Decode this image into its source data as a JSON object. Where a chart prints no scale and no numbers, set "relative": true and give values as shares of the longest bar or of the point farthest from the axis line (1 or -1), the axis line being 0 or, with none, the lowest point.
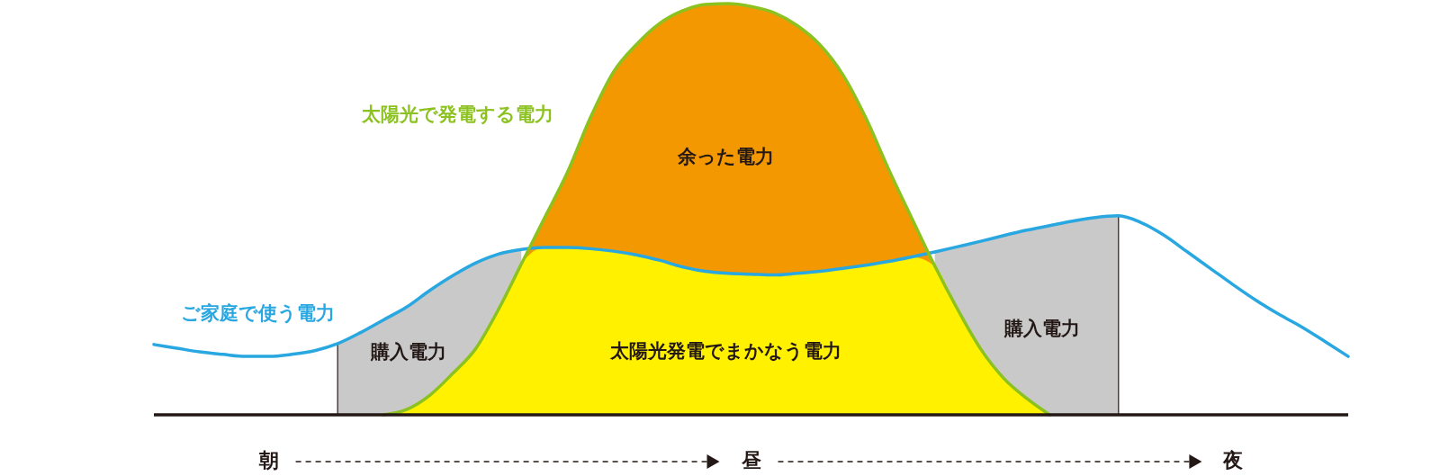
{
  "chart_data": {
    "type": "area",
    "relative": true,
    "legend": false,
    "categories": [
      null,
      null,
      null,
      null,
      null,
      "朝",
      null,
      null,
      null,
      null,
      null,
      null,
      null,
      null,
      null,
      null,
      null,
      null,
      null,
      null,
      null,
      null,
      null,
      null,
      null,
      null,
      "昼",
      null,
      null,
      null,
      null,
      null,
      null,
      null,
      null,
      null,
      null,
      null,
      null,
      null,
      null,
      null,
      null,
      null,
      null,
      null,
      null,
      "夜",
      null,
      null,
      null,
      null,
      null
    ],
    "annotations": [
      "余った電力",
      "太陽光発電でまかなう電力",
      "購入電力",
      "購入電力"
    ],
    "series": [
      {
        "color": "#c9c9c9",
        "values": [
          null,
          null,
          null,
          null,
          null,
          null,
          null,
          null,
          0.173,
          0.2,
          0.231,
          0.262,
          0.302,
          0.338,
          0.369,
          0.391,
          0.402,
          null,
          null,
          null,
          null,
          null,
          null,
          null,
          null,
          null,
          null,
          null,
          null,
          null,
          null,
          null,
          null,
          null,
          0.396,
          0.409,
          0.422,
          0.436,
          0.449,
          0.46,
          0.471,
          0.48,
          0.484,
          null,
          null,
          null,
          null,
          null,
          null,
          null,
          null,
          null,
          null
        ]
      },
      {
        "color": "#f39800",
        "values": [
          null,
          null,
          null,
          null,
          null,
          null,
          null,
          null,
          null,
          null,
          null,
          null,
          null,
          null,
          null,
          null,
          0.367,
          0.478,
          0.589,
          0.722,
          0.833,
          0.9,
          0.951,
          0.982,
          0.998,
          1,
          0.993,
          0.978,
          0.947,
          0.9,
          0.827,
          0.722,
          0.596,
          0.478,
          0.362,
          null,
          null,
          null,
          null,
          null,
          null,
          null,
          null,
          null,
          null,
          null,
          null,
          null,
          null,
          null,
          null,
          null,
          null
        ]
      },
      {
        "color": "#fff100",
        "values": [
          null,
          null,
          null,
          null,
          null,
          null,
          null,
          null,
          null,
          null,
          0,
          0.013,
          0.047,
          0.1,
          0.16,
          0.256,
          0.367,
          0.407,
          0.407,
          0.404,
          0.398,
          0.389,
          0.376,
          0.36,
          0.349,
          0.344,
          0.342,
          0.34,
          0.344,
          0.349,
          0.356,
          0.364,
          0.373,
          0.384,
          0.362,
          0.256,
          0.16,
          0.089,
          0.04,
          0,
          null,
          null,
          null,
          null,
          null,
          null,
          null,
          null,
          null,
          null,
          null,
          null,
          null
        ]
      },
      {
        "type": "line",
        "name": "ご家庭で使う電力",
        "color": "#29a7e1",
        "values": [
          0.171,
          0.162,
          0.153,
          0.147,
          0.142,
          0.142,
          0.147,
          0.156,
          0.173,
          0.2,
          0.231,
          0.262,
          0.302,
          0.338,
          0.369,
          0.391,
          0.402,
          0.407,
          0.407,
          0.404,
          0.398,
          0.389,
          0.376,
          0.36,
          0.349,
          0.344,
          0.342,
          0.34,
          0.344,
          0.349,
          0.356,
          0.364,
          0.373,
          0.384,
          0.396,
          0.409,
          0.422,
          0.436,
          0.449,
          0.46,
          0.471,
          0.48,
          0.484,
          0.467,
          0.436,
          0.396,
          0.356,
          0.316,
          0.278,
          0.244,
          0.213,
          0.178,
          0.142
        ]
      },
      {
        "type": "line",
        "name": "太陽光で発電する電力",
        "color": "#8cc21f",
        "values": [
          null,
          null,
          null,
          null,
          null,
          null,
          null,
          null,
          null,
          null,
          0,
          0.013,
          0.047,
          0.1,
          0.16,
          0.256,
          0.367,
          0.478,
          0.589,
          0.722,
          0.833,
          0.9,
          0.951,
          0.982,
          0.998,
          1,
          0.993,
          0.978,
          0.947,
          0.9,
          0.827,
          0.722,
          0.596,
          0.478,
          0.362,
          0.256,
          0.16,
          0.089,
          0.04,
          0,
          null,
          null,
          null,
          null,
          null,
          null,
          null,
          null,
          null,
          null,
          null,
          null,
          null
        ]
      }
    ]
  }
}
